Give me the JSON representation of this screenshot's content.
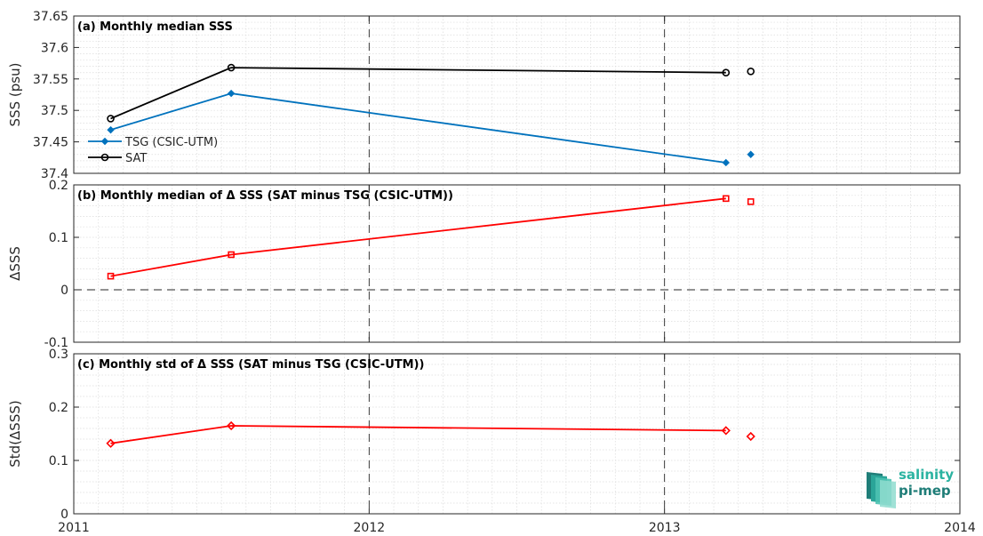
{
  "chart_data": {
    "type": "line",
    "xlim": [
      2011,
      2014
    ],
    "x_ticks": [
      2011,
      2012,
      2013,
      2014
    ],
    "x_tick_labels": [
      "2011",
      "2012",
      "2013",
      "2014"
    ],
    "x_dates": [
      2011.125,
      2011.533,
      2013.208,
      2013.292
    ],
    "vertical_dashed_lines": [
      2012,
      2013
    ],
    "panels": [
      {
        "id": "a",
        "title": "(a) Monthly median SSS",
        "ylabel": "SSS (psu)",
        "ylim": [
          37.4,
          37.65
        ],
        "y_ticks": [
          37.4,
          37.45,
          37.5,
          37.55,
          37.6,
          37.65
        ],
        "y_tick_labels": [
          "37.4",
          "37.45",
          "37.5",
          "37.55",
          "37.6",
          "37.65"
        ],
        "series": [
          {
            "name": "TSG (CSIC-UTM)",
            "color": "#0072bd",
            "marker": "diamond",
            "values": [
              37.469,
              37.527,
              37.417,
              37.43
            ]
          },
          {
            "name": "SAT",
            "color": "#000000",
            "marker": "circle",
            "values": [
              37.487,
              37.568,
              37.56,
              37.562
            ]
          }
        ],
        "legend": "lower-left"
      },
      {
        "id": "b",
        "title": "(b) Monthly median of Δ SSS (SAT minus TSG (CSIC-UTM))",
        "ylabel": "ΔSSS",
        "ylim": [
          -0.1,
          0.2
        ],
        "y_ticks": [
          -0.1,
          0,
          0.1,
          0.2
        ],
        "y_tick_labels": [
          "-0.1",
          "0",
          "0.1",
          "0.2"
        ],
        "zero_line": true,
        "series": [
          {
            "color": "#ff0000",
            "marker": "square",
            "values": [
              0.026,
              0.067,
              0.174,
              0.168
            ]
          }
        ]
      },
      {
        "id": "c",
        "title": "(c) Monthly std of Δ SSS (SAT minus TSG (CSIC-UTM))",
        "ylabel": "Std(ΔSSS)",
        "ylim": [
          0,
          0.3
        ],
        "y_ticks": [
          0,
          0.1,
          0.2,
          0.3
        ],
        "y_tick_labels": [
          "0",
          "0.1",
          "0.2",
          "0.3"
        ],
        "series": [
          {
            "color": "#ff0000",
            "marker": "diamond-open",
            "values": [
              0.132,
              0.165,
              0.156,
              0.145
            ]
          }
        ]
      }
    ]
  },
  "logo": {
    "line1": "salinity",
    "line2": "pi-mep"
  }
}
